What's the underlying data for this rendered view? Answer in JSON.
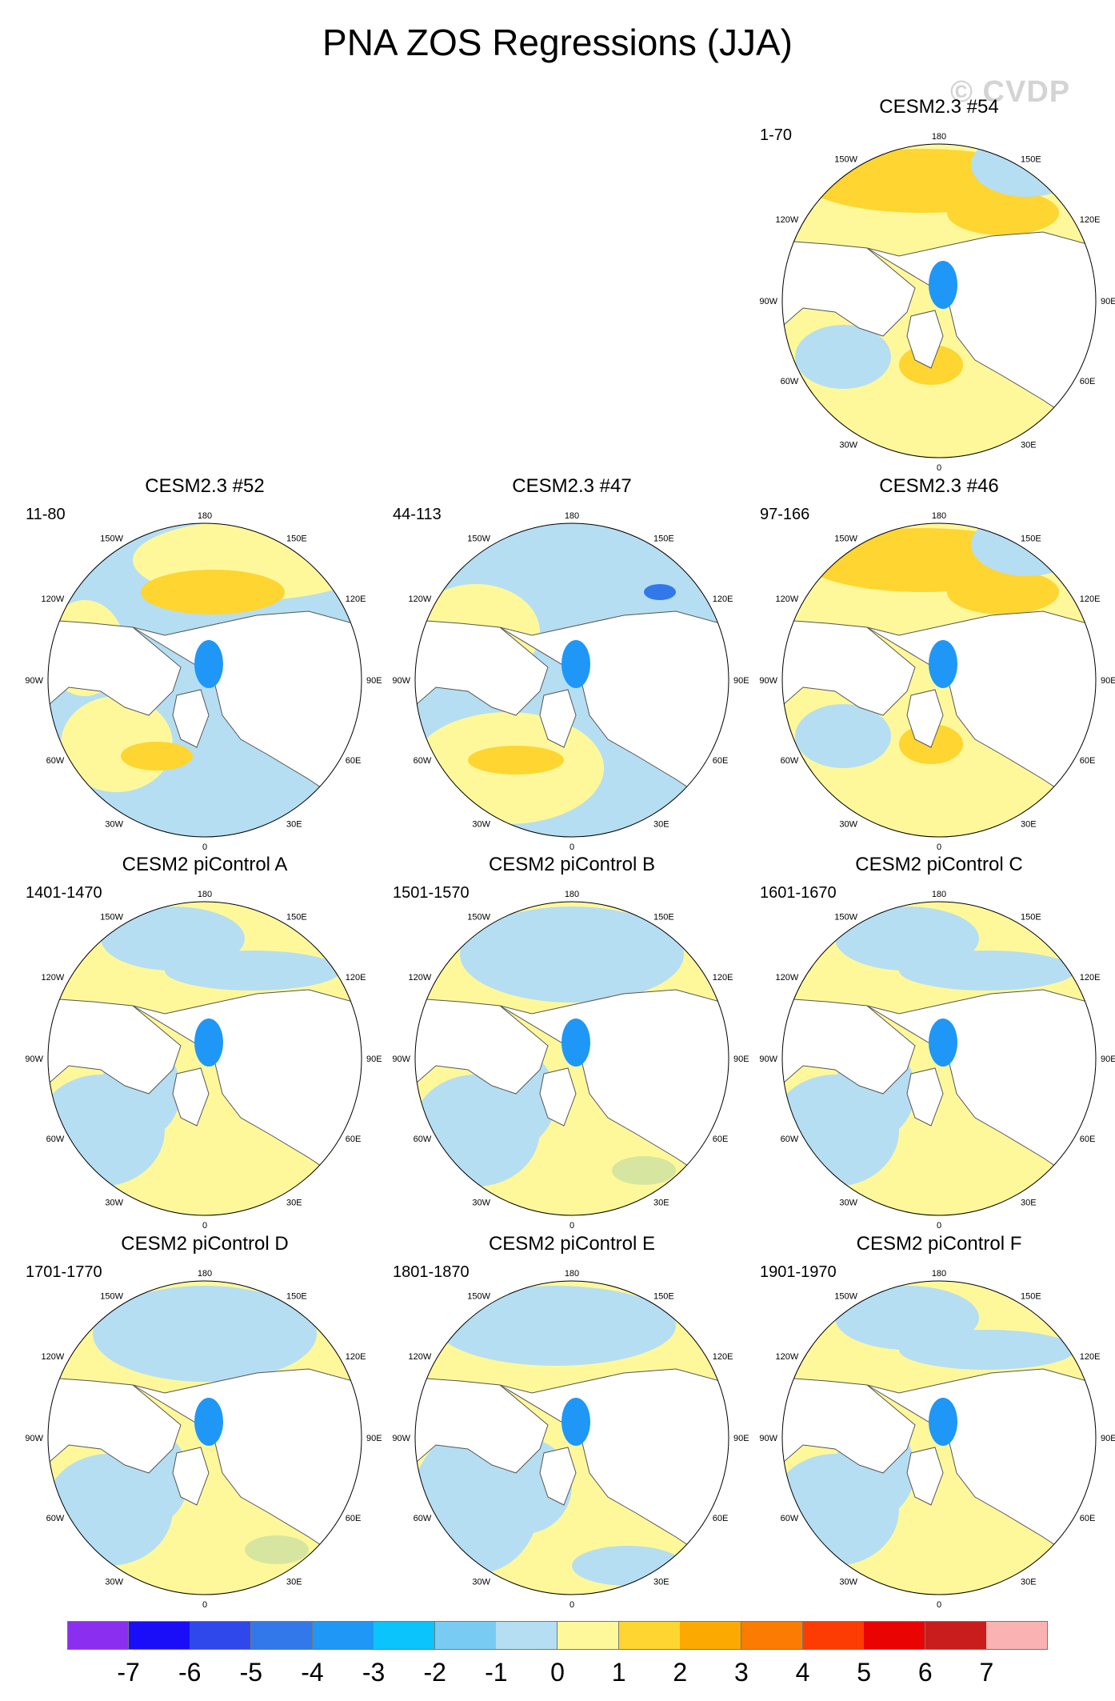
{
  "title": "PNA ZOS Regressions (JJA)",
  "watermark": "© CVDP",
  "panels": [
    {
      "title": "CESM2.3 #54",
      "years": "1-70",
      "pattern": "a"
    },
    {
      "title": "CESM2.3 #52",
      "years": "11-80",
      "pattern": "b"
    },
    {
      "title": "CESM2.3 #47",
      "years": "44-113",
      "pattern": "c"
    },
    {
      "title": "CESM2.3 #46",
      "years": "97-166",
      "pattern": "a"
    },
    {
      "title": "CESM2 piControl A",
      "years": "1401-1470",
      "pattern": "d"
    },
    {
      "title": "CESM2 piControl B",
      "years": "1501-1570",
      "pattern": "e"
    },
    {
      "title": "CESM2 piControl C",
      "years": "1601-1670",
      "pattern": "d"
    },
    {
      "title": "CESM2 piControl D",
      "years": "1701-1770",
      "pattern": "e"
    },
    {
      "title": "CESM2 piControl E",
      "years": "1801-1870",
      "pattern": "f"
    },
    {
      "title": "CESM2 piControl F",
      "years": "1901-1970",
      "pattern": "d"
    }
  ],
  "lon_labels": {
    "top": "180",
    "bottom": "0",
    "left": "90W",
    "right": "90E",
    "upper_left": "120W",
    "upper_right": "120E",
    "top_left": "150W",
    "top_right": "150E",
    "lower_left": "60W",
    "lower_right": "60E",
    "bottom_left": "30W",
    "bottom_right": "30E"
  },
  "colorbar": {
    "colors": [
      "#8b2ef0",
      "#1a0df7",
      "#2f48ec",
      "#3278ea",
      "#1f97f7",
      "#0ac4fb",
      "#78ccf4",
      "#b5def2",
      "#fff89b",
      "#fed531",
      "#fcaa02",
      "#fc7b02",
      "#fc3c02",
      "#ea0303",
      "#c91c1c",
      "#fbb2b2"
    ],
    "labels": [
      "-7",
      "-6",
      "-5",
      "-4",
      "-3",
      "-2",
      "-1",
      "0",
      "1",
      "2",
      "3",
      "4",
      "5",
      "6",
      "7"
    ]
  }
}
